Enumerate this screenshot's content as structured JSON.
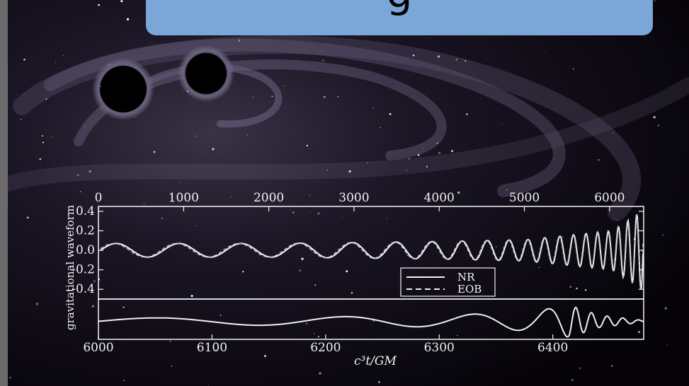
{
  "slide": {
    "title_partial": "g",
    "colors": {
      "title_box": "#7ba6d8",
      "curve": "#f0f0f0",
      "space": "#050308",
      "frame": "#f2f2f2"
    }
  },
  "chart_data": [
    {
      "type": "line",
      "panel": "top",
      "title": "",
      "xlabel": "",
      "ylabel": "gravitational waveform",
      "xlim": [
        0,
        6400
      ],
      "ylim": [
        -0.5,
        0.45
      ],
      "x_ticks": [
        "0",
        "1000",
        "2000",
        "3000",
        "4000",
        "5000",
        "6000"
      ],
      "y_ticks": [
        "0.4",
        "0.2",
        "0.0",
        "-0.2",
        "-0.4"
      ],
      "legend": {
        "placement": "lower-right",
        "entries": [
          "NR",
          "EOB"
        ]
      },
      "series": [
        {
          "name": "NR",
          "style": "solid",
          "description_points": {
            "x": [
              0,
              1000,
              2000,
              3000,
              4000,
              5000,
              6000,
              6250,
              6400
            ],
            "y_amplitude": [
              0.07,
              0.07,
              0.07,
              0.08,
              0.09,
              0.11,
              0.2,
              0.34,
              0.45
            ]
          }
        },
        {
          "name": "EOB",
          "style": "dashed",
          "description_points": {
            "x": [
              0,
              1000,
              2000,
              3000,
              4000,
              5000,
              6000,
              6250,
              6400
            ],
            "y_amplitude": [
              0.07,
              0.07,
              0.07,
              0.08,
              0.09,
              0.11,
              0.2,
              0.34,
              0.45
            ]
          }
        }
      ]
    },
    {
      "type": "line",
      "panel": "bottom",
      "title": "",
      "xlabel": "c³t/GM",
      "x_ticks": [
        "6000",
        "6100",
        "6200",
        "6300",
        "6400"
      ],
      "xlim": [
        6000,
        6480
      ],
      "series": [
        {
          "name": "",
          "style": "solid",
          "peak_time": 6415,
          "x": [
            6000,
            6100,
            6200,
            6300,
            6380,
            6415,
            6440,
            6480
          ],
          "amplitude": [
            0.2,
            0.23,
            0.28,
            0.36,
            0.6,
            1.0,
            0.4,
            0.05
          ]
        }
      ]
    }
  ]
}
